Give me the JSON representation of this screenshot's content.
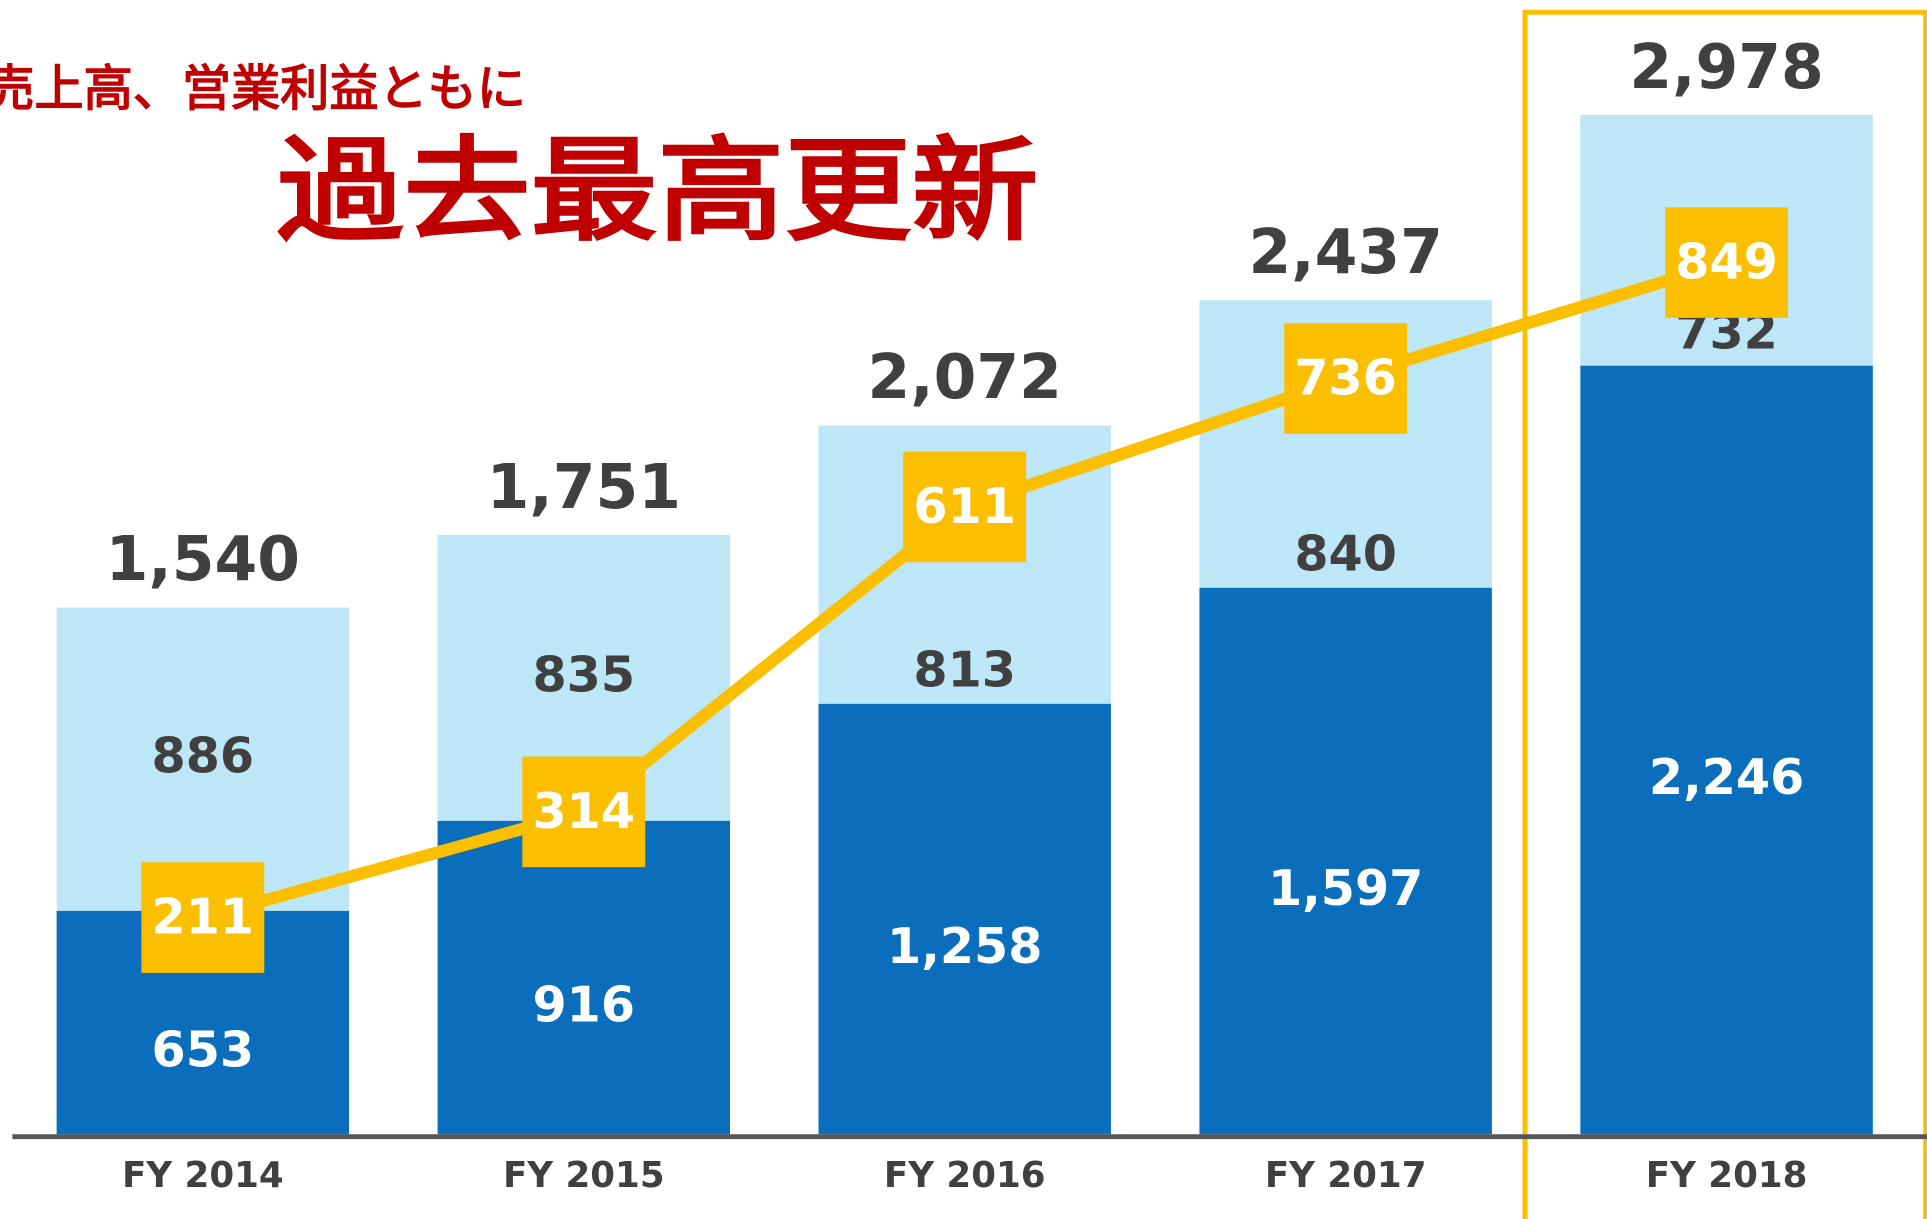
{
  "chart_data": {
    "type": "bar",
    "title": "売上高、営業利益ともに",
    "subtitle": "過去最高更新",
    "categories": [
      "FY 2014",
      "FY 2015",
      "FY 2016",
      "FY 2017",
      "FY 2018"
    ],
    "stacked": true,
    "ylim": [
      0,
      3300
    ],
    "y2lim": [
      0,
      1100
    ],
    "series": [
      {
        "color": "#0a6ebd",
        "values": [
          653,
          916,
          1258,
          1597,
          2246
        ],
        "value_labels": [
          "653",
          "916",
          "1,258",
          "1,597",
          "2,246"
        ]
      },
      {
        "color": "#bde6f7",
        "values": [
          886,
          835,
          813,
          840,
          732
        ],
        "value_labels": [
          "886",
          "835",
          "813",
          "840",
          "732"
        ]
      },
      {
        "type": "line",
        "axis": "y2",
        "color": "#fbbf00",
        "values": [
          211,
          314,
          611,
          736,
          849
        ],
        "value_labels": [
          "211",
          "314",
          "611",
          "736",
          "849"
        ]
      }
    ],
    "totals": {
      "values": [
        1540,
        1751,
        2072,
        2437,
        2978
      ],
      "value_labels": [
        "1,540",
        "1,751",
        "2,072",
        "2,437",
        "2,978"
      ]
    }
  }
}
